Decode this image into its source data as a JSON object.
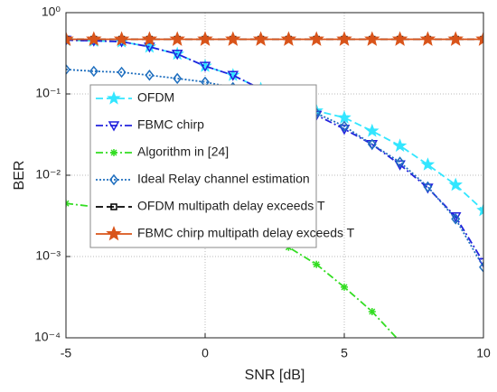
{
  "chart_data": {
    "type": "line",
    "xlabel": "SNR [dB]",
    "ylabel": "BER",
    "x": [
      -5,
      -4,
      -3,
      -2,
      -1,
      0,
      1,
      2,
      3,
      4,
      5,
      6,
      7,
      8,
      9,
      10
    ],
    "xlim": [
      -5,
      10
    ],
    "xticks": [
      -5,
      0,
      5,
      10
    ],
    "ylim": [
      0.0001,
      1
    ],
    "yscale": "log",
    "yticks": [
      {
        "value": 0.0001,
        "label": "10⁻⁴"
      },
      {
        "value": 0.001,
        "label": "10⁻³"
      },
      {
        "value": 0.01,
        "label": "10⁻²"
      },
      {
        "value": 0.1,
        "label": "10⁻¹"
      },
      {
        "value": 1,
        "label": "10⁰"
      }
    ],
    "grid": true,
    "legend": "upper left",
    "series": [
      {
        "name": "OFDM",
        "color": "#33e6ff",
        "marker": "star",
        "linestyle": "dashed",
        "values": [
          0.46,
          0.45,
          0.44,
          0.38,
          0.31,
          0.22,
          0.17,
          0.115,
          0.08,
          0.062,
          0.051,
          0.035,
          0.023,
          0.0135,
          0.0076,
          0.0037
        ]
      },
      {
        "name": "FBMC chirp",
        "color": "#2222dd",
        "marker": "triangle-down",
        "linestyle": "dashdot",
        "values": [
          0.46,
          0.45,
          0.44,
          0.38,
          0.31,
          0.22,
          0.17,
          0.115,
          0.08,
          0.055,
          0.037,
          0.024,
          0.0135,
          0.007,
          0.0031,
          0.00085
        ]
      },
      {
        "name": "Algorithm in [24]",
        "color": "#33dd22",
        "marker": "asterisk",
        "linestyle": "dashdot",
        "values": [
          0.0045,
          0.0041,
          0.0037,
          0.0033,
          0.0029,
          0.0026,
          0.0022,
          0.0018,
          0.0013,
          0.0008,
          0.00042,
          0.00021,
          9e-05,
          null,
          null,
          null
        ]
      },
      {
        "name": "Ideal Relay channel estimation",
        "color": "#1f6fbf",
        "marker": "diamond",
        "linestyle": "dotted",
        "values": [
          0.2,
          0.19,
          0.185,
          0.17,
          0.155,
          0.14,
          0.12,
          0.1,
          0.08,
          0.058,
          0.04,
          0.024,
          0.0145,
          0.0072,
          0.0029,
          0.00074
        ]
      },
      {
        "name": "OFDM multipath delay exceeds T",
        "color": "#000000",
        "marker": "square",
        "linestyle": "dashed",
        "values": [
          0.47,
          0.47,
          0.47,
          0.47,
          0.47,
          0.47,
          0.47,
          0.47,
          0.47,
          0.47,
          0.47,
          0.47,
          0.47,
          0.47,
          0.47,
          0.47
        ]
      },
      {
        "name": "FBMC chirp multipath delay exceeds T",
        "color": "#d9541a",
        "marker": "star-filled",
        "linestyle": "solid",
        "values": [
          0.47,
          0.47,
          0.47,
          0.47,
          0.47,
          0.47,
          0.47,
          0.47,
          0.47,
          0.47,
          0.47,
          0.47,
          0.47,
          0.47,
          0.47,
          0.47
        ]
      }
    ]
  }
}
